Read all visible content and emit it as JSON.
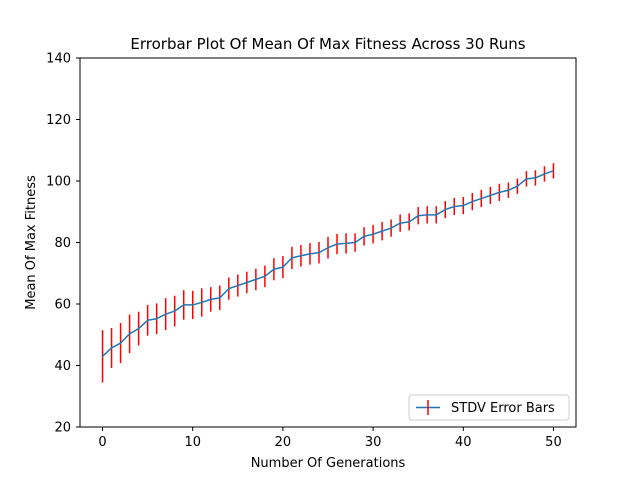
{
  "chart_data": {
    "type": "line",
    "title": "Errorbar Plot Of Mean Of Max Fitness Across 30 Runs",
    "xlabel": "Number Of Generations",
    "ylabel": "Mean Of Max Fitness",
    "xlim": [
      -2.5,
      52.5
    ],
    "ylim": [
      20,
      140
    ],
    "xticks": [
      0,
      10,
      20,
      30,
      40,
      50
    ],
    "yticks": [
      20,
      40,
      60,
      80,
      100,
      120,
      140
    ],
    "grid": false,
    "legend_position": "lower-right",
    "series": [
      {
        "name": "STDV Error Bars",
        "line_color": "#1f77b4",
        "errorbar_color": "#ff0000",
        "x": [
          0,
          1,
          2,
          3,
          4,
          5,
          6,
          7,
          8,
          9,
          10,
          11,
          12,
          13,
          14,
          15,
          16,
          17,
          18,
          19,
          20,
          21,
          22,
          23,
          24,
          25,
          26,
          27,
          28,
          29,
          30,
          31,
          32,
          33,
          34,
          35,
          36,
          37,
          38,
          39,
          40,
          41,
          42,
          43,
          44,
          45,
          46,
          47,
          48,
          49,
          50
        ],
        "y": [
          43.0,
          45.7,
          47.3,
          50.3,
          52.0,
          54.7,
          55.2,
          56.7,
          57.7,
          59.7,
          59.7,
          60.5,
          61.5,
          62.0,
          65.0,
          66.0,
          67.0,
          68.0,
          69.0,
          71.3,
          72.0,
          75.0,
          75.7,
          76.3,
          76.7,
          78.3,
          79.5,
          79.7,
          80.0,
          82.0,
          82.7,
          83.7,
          84.7,
          86.3,
          86.7,
          88.7,
          89.0,
          89.0,
          90.7,
          91.7,
          92.0,
          93.3,
          94.3,
          95.3,
          96.3,
          97.0,
          98.3,
          100.7,
          101.0,
          102.3,
          103.3
        ],
        "error": [
          8.5,
          6.5,
          6.5,
          6.3,
          5.5,
          5.0,
          5.0,
          5.2,
          5.0,
          4.8,
          4.6,
          4.6,
          4.0,
          4.0,
          3.6,
          3.6,
          3.5,
          3.5,
          3.5,
          3.6,
          3.6,
          3.6,
          3.5,
          3.5,
          3.5,
          3.5,
          3.3,
          3.3,
          3.0,
          3.0,
          3.0,
          3.0,
          2.8,
          2.8,
          2.8,
          2.8,
          2.8,
          2.8,
          2.8,
          2.8,
          2.8,
          2.8,
          2.8,
          2.8,
          2.8,
          2.5,
          2.5,
          2.5,
          2.5,
          2.5,
          2.5
        ]
      }
    ]
  }
}
